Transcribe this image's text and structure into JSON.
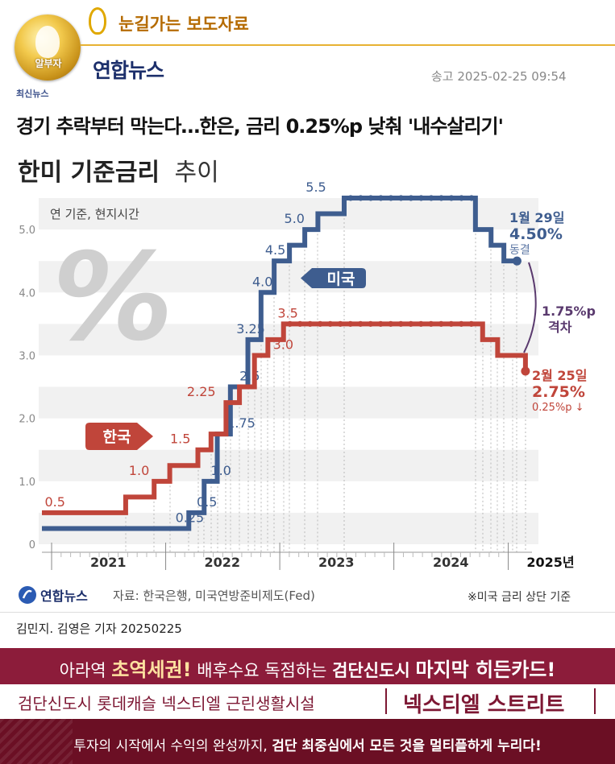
{
  "header": {
    "logo_text": "알부자",
    "series_title": "눈길가는 보도자료",
    "publisher": "연합뉴스",
    "send_time": "송고 2025-02-25 09:54",
    "category": "최신뉴스",
    "headline": "경기 추락부터 막는다…한은, 금리 0.25%p 낮춰 '내수살리기'"
  },
  "chart_data": {
    "type": "line",
    "title_bold": "한미 기준금리",
    "title_light": "추이",
    "subtitle": "연 기준, 현지시간",
    "ylim": [
      0,
      5.5
    ],
    "yticks": [
      "0",
      "1.0",
      "2.0",
      "3.0",
      "4.0",
      "5.0"
    ],
    "xticks": [
      "2021",
      "2022",
      "2023",
      "2024",
      "2025년"
    ],
    "grid": true,
    "series": [
      {
        "name": "미국",
        "color": "#3e5d8f",
        "points": [
          [
            "2020-12-01",
            0.25
          ],
          [
            "2022-03-16",
            0.5
          ],
          [
            "2022-05-04",
            1.0
          ],
          [
            "2022-06-15",
            1.75
          ],
          [
            "2022-07-27",
            2.5
          ],
          [
            "2022-09-21",
            3.25
          ],
          [
            "2022-11-02",
            4.0
          ],
          [
            "2022-12-14",
            4.5
          ],
          [
            "2023-02-01",
            4.75
          ],
          [
            "2023-03-22",
            5.0
          ],
          [
            "2023-05-03",
            5.25
          ],
          [
            "2023-07-26",
            5.5
          ],
          [
            "2024-09-18",
            5.0
          ],
          [
            "2024-11-07",
            4.75
          ],
          [
            "2024-12-18",
            4.5
          ],
          [
            "2025-01-29",
            4.5
          ]
        ],
        "labels": [
          {
            "text": "0.25",
            "x": "2022-02-01",
            "y": 0.25
          },
          {
            "text": "0.5",
            "x": "2022-04-10",
            "y": 0.5
          },
          {
            "text": "1.0",
            "x": "2022-05-25",
            "y": 1.0
          },
          {
            "text": "1.75",
            "x": "2022-07-15",
            "y": 1.75
          },
          {
            "text": "2.5",
            "x": "2022-08-25",
            "y": 2.5
          },
          {
            "text": "3.25",
            "x": "2022-08-15",
            "y": 3.25
          },
          {
            "text": "4.0",
            "x": "2022-10-05",
            "y": 4.0
          },
          {
            "text": "4.5",
            "x": "2022-11-15",
            "y": 4.5
          },
          {
            "text": "5.0",
            "x": "2023-01-15",
            "y": 5.0
          },
          {
            "text": "5.5",
            "x": "2023-03-25",
            "y": 5.5
          }
        ]
      },
      {
        "name": "한국",
        "color": "#c0453a",
        "points": [
          [
            "2020-12-01",
            0.5
          ],
          [
            "2021-08-26",
            0.75
          ],
          [
            "2021-11-25",
            1.0
          ],
          [
            "2022-01-14",
            1.25
          ],
          [
            "2022-04-14",
            1.5
          ],
          [
            "2022-05-26",
            1.75
          ],
          [
            "2022-07-13",
            2.25
          ],
          [
            "2022-08-25",
            2.5
          ],
          [
            "2022-10-12",
            3.0
          ],
          [
            "2022-11-24",
            3.25
          ],
          [
            "2023-01-13",
            3.5
          ],
          [
            "2024-10-11",
            3.25
          ],
          [
            "2024-11-28",
            3.0
          ],
          [
            "2025-01-16",
            3.0
          ],
          [
            "2025-02-25",
            2.75
          ]
        ],
        "labels": [
          {
            "text": "0.5",
            "x": "2020-12-10",
            "y": 0.5
          },
          {
            "text": "1.0",
            "x": "2021-09-05",
            "y": 1.0
          },
          {
            "text": "1.5",
            "x": "2022-01-15",
            "y": 1.5
          },
          {
            "text": "2.25",
            "x": "2022-03-10",
            "y": 2.25
          },
          {
            "text": "3.0",
            "x": "2022-12-10",
            "y": 3.0
          },
          {
            "text": "3.5",
            "x": "2022-12-25",
            "y": 3.5
          }
        ]
      }
    ],
    "annotations": {
      "us_date": "1월 29일",
      "us_rate": "4.50%",
      "us_note": "동결",
      "kr_date": "2월 25일",
      "kr_rate": "2.75%",
      "kr_note": "0.25%p ↓",
      "gap_value": "1.75%p",
      "gap_label": "격차",
      "percent_symbol": "%"
    }
  },
  "footer": {
    "publisher": "연합뉴스",
    "source": "자료: 한국은행, 미국연방준비제도(Fed)",
    "note": "※미국 금리 상단 기준",
    "byline": "김민지. 김영은 기자  20250225"
  },
  "ad": {
    "line1_a": "아라역 ",
    "line1_b": "초역세권!",
    "line1_c": " 배후수요 독점하는 ",
    "line1_d": "검단신도시",
    "line1_e": " ",
    "line1_f": "마지막 히든카드!",
    "line2": "검단신도시 롯데캐슬 넥스티엘 근린생활시설",
    "line2_brand": "넥스티엘 스트리트",
    "line3_a": "투자의 시작에서 수익의 완성까지, ",
    "line3_b": "검단 최중심에서 모든 것을 멀티플하게 누리다!"
  },
  "colors": {
    "us": "#3e5d8f",
    "kr": "#c0453a",
    "gap": "#5a3a6e",
    "ad_bg": "#8c1c3a"
  }
}
